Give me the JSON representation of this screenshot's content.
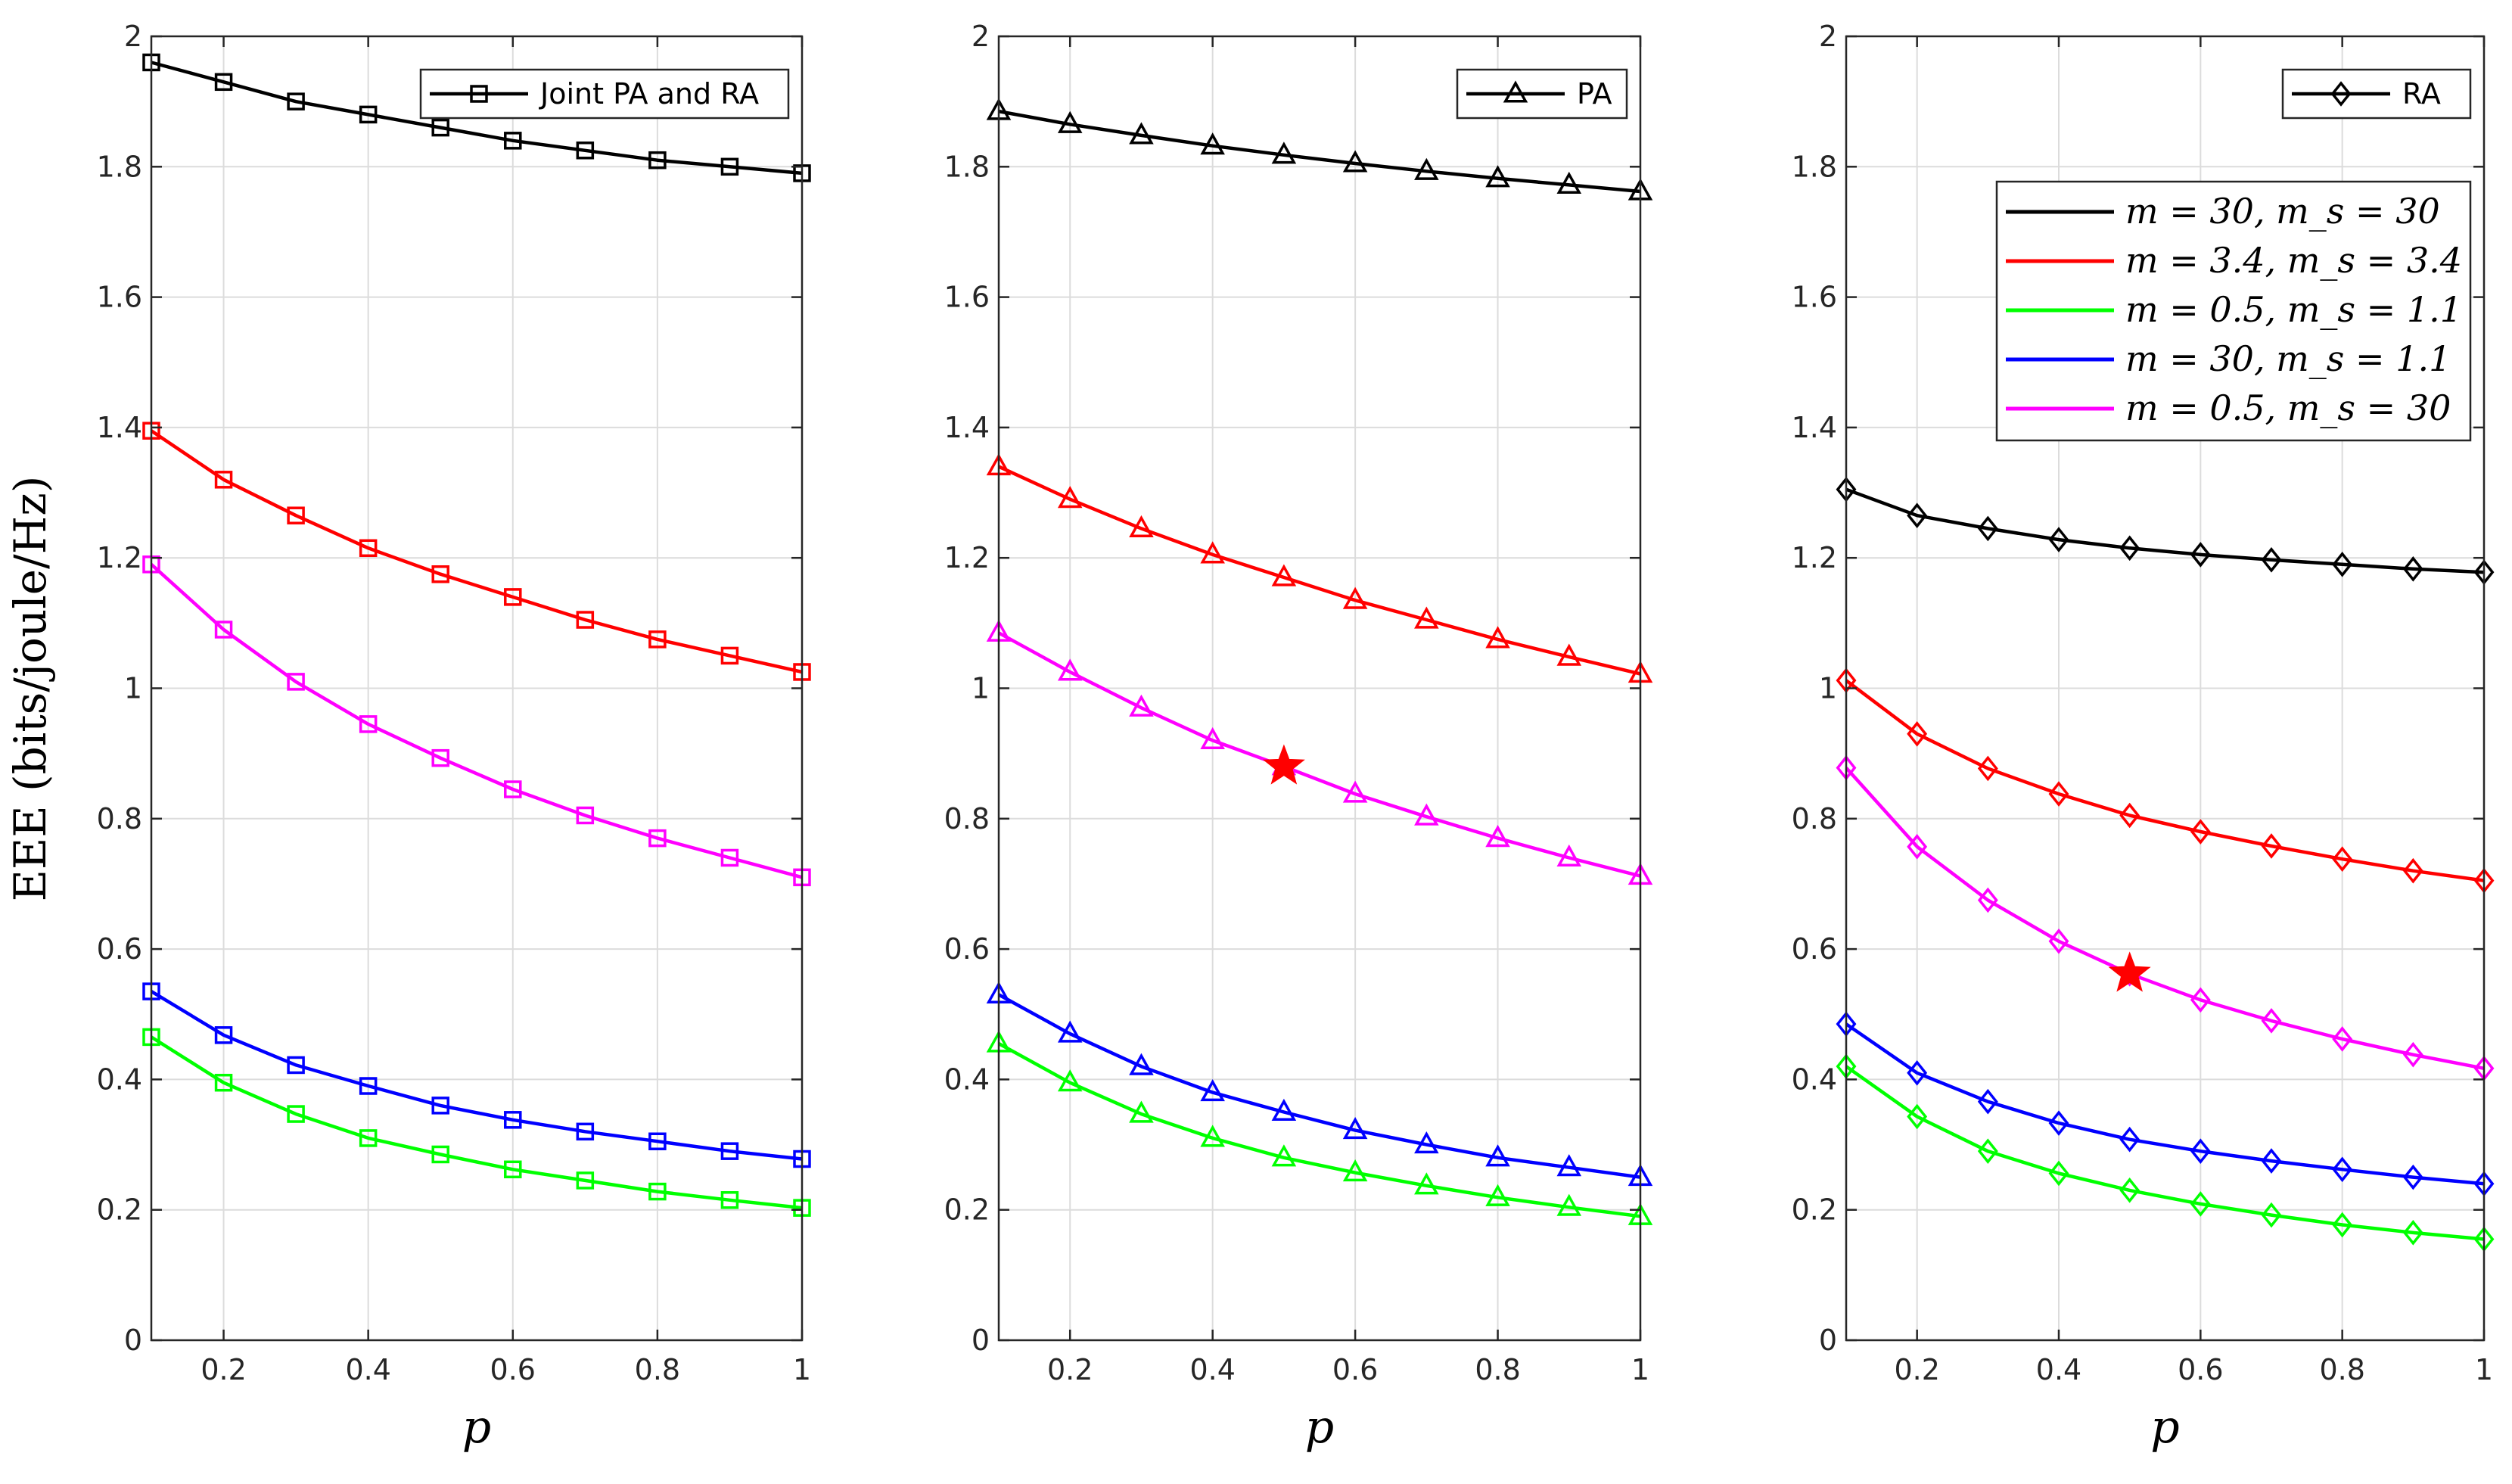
{
  "colors": {
    "m30_ms30": "#000000",
    "m3.4_ms3.4": "#ff0000",
    "m0.5_ms1.1": "#00ff00",
    "m30_ms1.1": "#0000ff",
    "m0.5_ms30": "#ff00ff",
    "grid": "#dcdcdc",
    "axis": "#262626",
    "star": "#ff0000"
  },
  "ylabel": "EEE (bits/joule/Hz)",
  "series_legend": [
    {
      "key": "m30_ms30",
      "label": "m = 30, m_s = 30"
    },
    {
      "key": "m3.4_ms3.4",
      "label": "m = 3.4, m_s = 3.4"
    },
    {
      "key": "m0.5_ms1.1",
      "label": "m = 0.5, m_s = 1.1"
    },
    {
      "key": "m30_ms1.1",
      "label": "m = 30, m_s = 1.1"
    },
    {
      "key": "m0.5_ms30",
      "label": "m = 0.5, m_s = 30"
    }
  ],
  "chart_data": [
    {
      "type": "line",
      "marker": "square",
      "legend_label": "Joint PA and RA",
      "xlabel": "p",
      "xlim": [
        0.1,
        1
      ],
      "ylim": [
        0,
        2
      ],
      "xticks": [
        "0.2",
        "0.4",
        "0.6",
        "0.8",
        "1"
      ],
      "yticks": [
        "0",
        "0.2",
        "0.4",
        "0.6",
        "0.8",
        "1",
        "1.2",
        "1.4",
        "1.6",
        "1.8",
        "2"
      ],
      "x": [
        0.1,
        0.2,
        0.3,
        0.4,
        0.5,
        0.6,
        0.7,
        0.8,
        0.9,
        1.0
      ],
      "series": [
        {
          "key": "m30_ms30",
          "values": [
            1.96,
            1.93,
            1.9,
            1.88,
            1.86,
            1.84,
            1.825,
            1.81,
            1.8,
            1.79
          ]
        },
        {
          "key": "m3.4_ms3.4",
          "values": [
            1.395,
            1.32,
            1.265,
            1.215,
            1.175,
            1.14,
            1.105,
            1.075,
            1.05,
            1.025
          ]
        },
        {
          "key": "m0.5_ms30",
          "values": [
            1.19,
            1.09,
            1.01,
            0.945,
            0.893,
            0.845,
            0.805,
            0.77,
            0.74,
            0.71
          ]
        },
        {
          "key": "m30_ms1.1",
          "values": [
            0.535,
            0.468,
            0.422,
            0.39,
            0.36,
            0.338,
            0.32,
            0.305,
            0.29,
            0.278
          ]
        },
        {
          "key": "m0.5_ms1.1",
          "values": [
            0.465,
            0.395,
            0.347,
            0.31,
            0.285,
            0.262,
            0.245,
            0.228,
            0.215,
            0.203
          ]
        }
      ]
    },
    {
      "type": "line",
      "marker": "triangle",
      "legend_label": "PA",
      "xlabel": "p",
      "xlim": [
        0.1,
        1
      ],
      "ylim": [
        0,
        2
      ],
      "xticks": [
        "0.2",
        "0.4",
        "0.6",
        "0.8",
        "1"
      ],
      "yticks": [
        "0",
        "0.2",
        "0.4",
        "0.6",
        "0.8",
        "1",
        "1.2",
        "1.4",
        "1.6",
        "1.8",
        "2"
      ],
      "x": [
        0.1,
        0.2,
        0.3,
        0.4,
        0.5,
        0.6,
        0.7,
        0.8,
        0.9,
        1.0
      ],
      "series": [
        {
          "key": "m30_ms30",
          "values": [
            1.885,
            1.865,
            1.848,
            1.832,
            1.818,
            1.805,
            1.793,
            1.782,
            1.772,
            1.762
          ]
        },
        {
          "key": "m3.4_ms3.4",
          "values": [
            1.34,
            1.29,
            1.245,
            1.205,
            1.17,
            1.135,
            1.105,
            1.075,
            1.048,
            1.022
          ]
        },
        {
          "key": "m0.5_ms30",
          "values": [
            1.085,
            1.025,
            0.97,
            0.92,
            0.88,
            0.838,
            0.803,
            0.77,
            0.74,
            0.712
          ]
        },
        {
          "key": "m30_ms1.1",
          "values": [
            0.53,
            0.47,
            0.42,
            0.38,
            0.35,
            0.322,
            0.3,
            0.28,
            0.265,
            0.25
          ]
        },
        {
          "key": "m0.5_ms1.1",
          "values": [
            0.455,
            0.395,
            0.347,
            0.31,
            0.28,
            0.257,
            0.237,
            0.219,
            0.204,
            0.19
          ]
        }
      ],
      "annotations": [
        {
          "type": "star",
          "x": 0.5,
          "y": 0.88
        }
      ]
    },
    {
      "type": "line",
      "marker": "diamond",
      "legend_label": "RA",
      "xlabel": "p",
      "xlim": [
        0.1,
        1
      ],
      "ylim": [
        0,
        2
      ],
      "xticks": [
        "0.2",
        "0.4",
        "0.6",
        "0.8",
        "1"
      ],
      "yticks": [
        "0",
        "0.2",
        "0.4",
        "0.6",
        "0.8",
        "1",
        "1.2",
        "1.4",
        "1.6",
        "1.8",
        "2"
      ],
      "x": [
        0.1,
        0.2,
        0.3,
        0.4,
        0.5,
        0.6,
        0.7,
        0.8,
        0.9,
        1.0
      ],
      "series": [
        {
          "key": "m30_ms30",
          "values": [
            1.305,
            1.265,
            1.245,
            1.228,
            1.215,
            1.205,
            1.197,
            1.19,
            1.183,
            1.178
          ]
        },
        {
          "key": "m3.4_ms3.4",
          "values": [
            1.012,
            0.93,
            0.877,
            0.838,
            0.805,
            0.78,
            0.758,
            0.738,
            0.72,
            0.705
          ]
        },
        {
          "key": "m0.5_ms30",
          "values": [
            0.878,
            0.757,
            0.675,
            0.612,
            0.562,
            0.522,
            0.49,
            0.462,
            0.438,
            0.417
          ]
        },
        {
          "key": "m30_ms1.1",
          "values": [
            0.485,
            0.41,
            0.366,
            0.333,
            0.308,
            0.29,
            0.275,
            0.262,
            0.25,
            0.24
          ]
        },
        {
          "key": "m0.5_ms1.1",
          "values": [
            0.42,
            0.343,
            0.29,
            0.256,
            0.23,
            0.209,
            0.192,
            0.177,
            0.165,
            0.155
          ]
        }
      ],
      "annotations": [
        {
          "type": "star",
          "x": 0.5,
          "y": 0.562
        }
      ]
    }
  ]
}
